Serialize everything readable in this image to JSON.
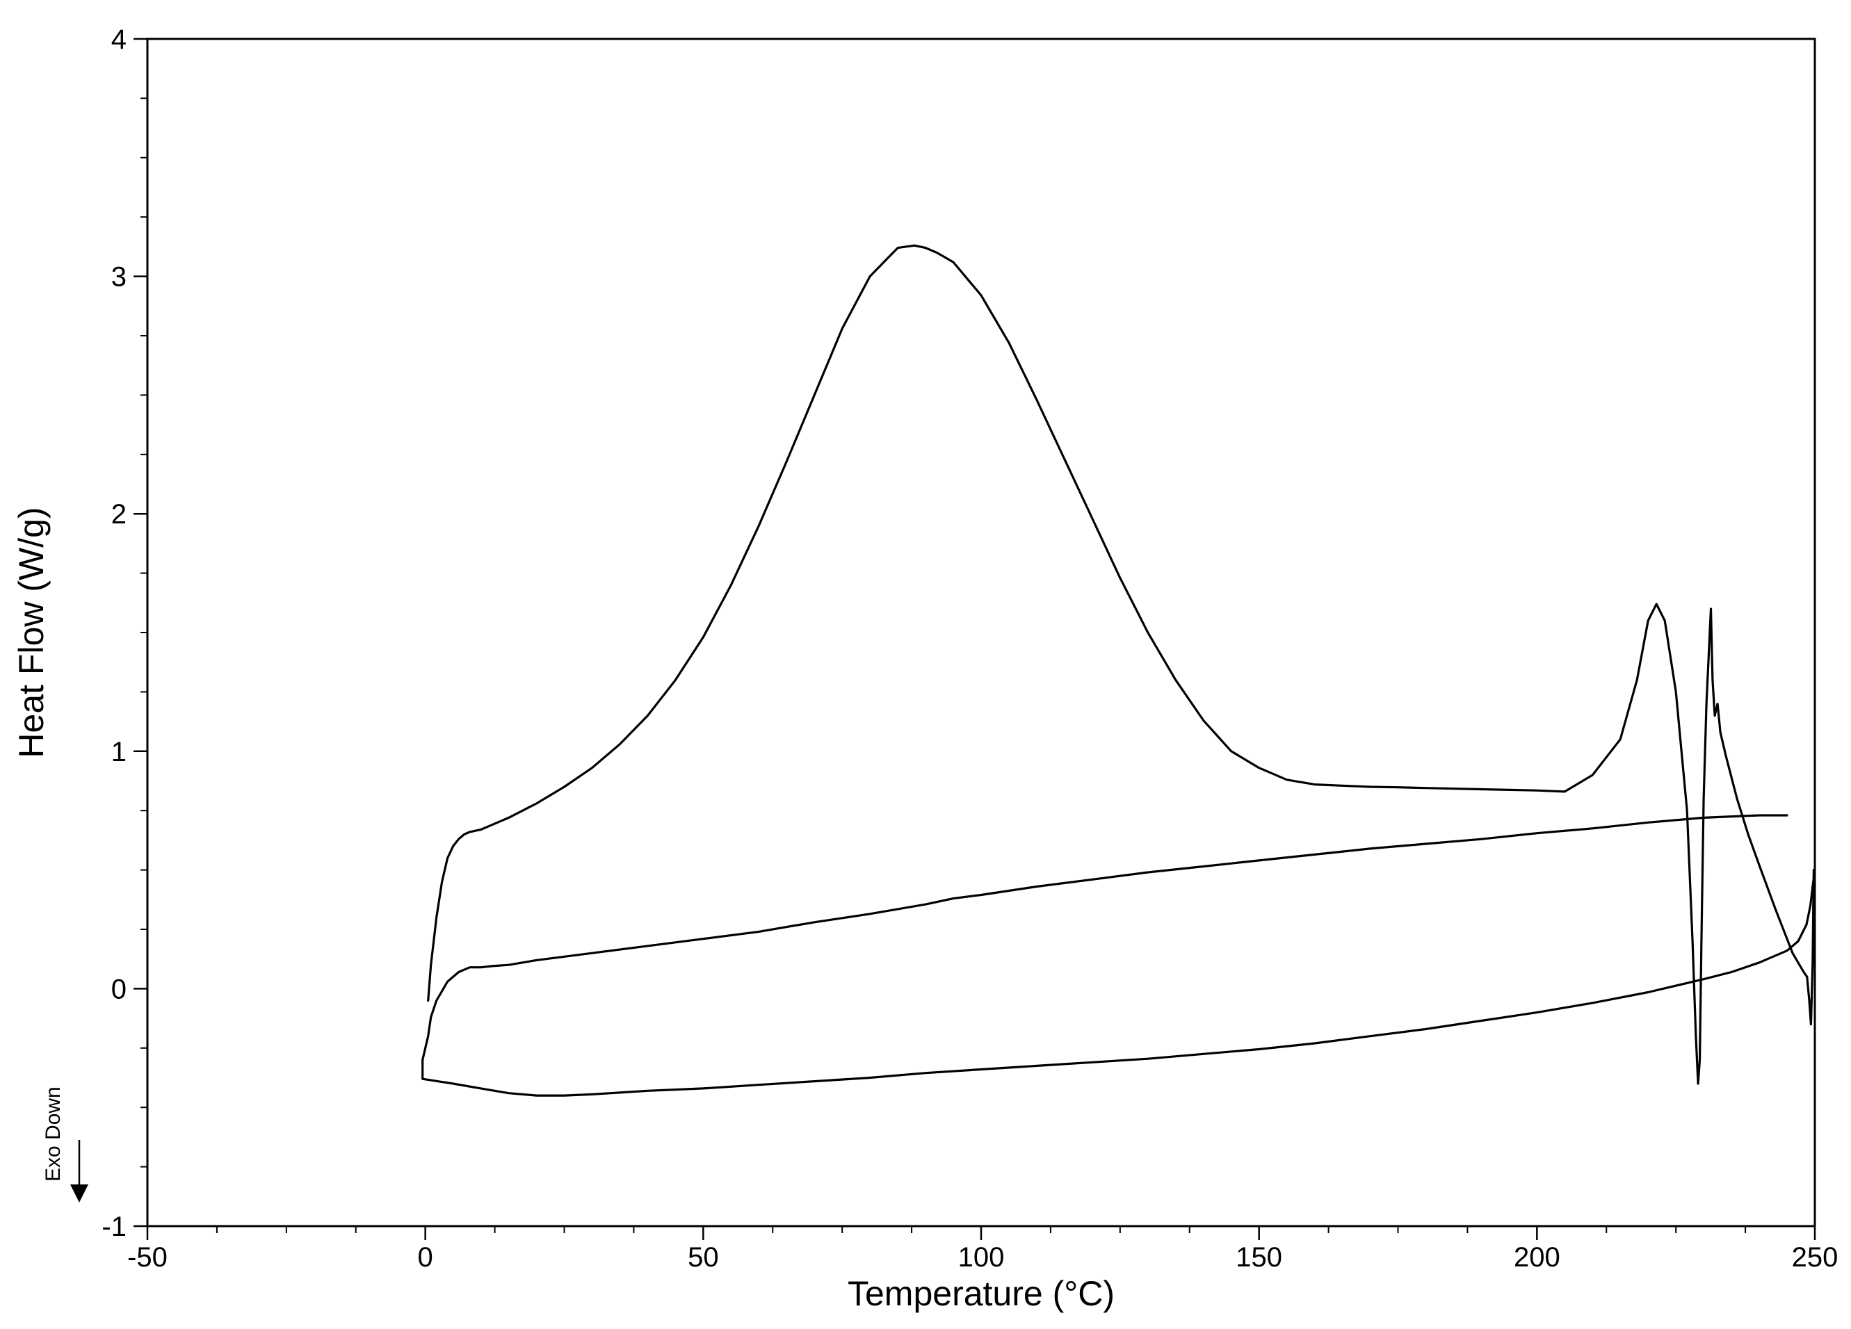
{
  "chart_data": {
    "type": "line",
    "title": "",
    "xlabel": "Temperature (°C)",
    "ylabel": "Heat Flow (W/g)",
    "xlim": [
      -50,
      250
    ],
    "ylim": [
      -1,
      4
    ],
    "x_ticks": [
      -50,
      0,
      50,
      100,
      150,
      200,
      250
    ],
    "y_ticks": [
      -1,
      0,
      1,
      2,
      3,
      4
    ],
    "x_tick_labels": [
      "-50",
      "0",
      "50",
      "100",
      "150",
      "200",
      "250"
    ],
    "y_tick_labels": [
      "-1",
      "0",
      "1",
      "2",
      "3",
      "4"
    ],
    "grid": false,
    "annotation": {
      "text": "Exo Down",
      "arrow": "down"
    },
    "series": [
      {
        "x": [
          0.5,
          1,
          2,
          3,
          4,
          5,
          6,
          7,
          8,
          9,
          10,
          12,
          15,
          20,
          25,
          30,
          35,
          40,
          45,
          50,
          55,
          60,
          65,
          70,
          75,
          80,
          85,
          88,
          90,
          92,
          95,
          100,
          105,
          110,
          115,
          120,
          125,
          130,
          135,
          140,
          145,
          150,
          155,
          160,
          165,
          170,
          175,
          180,
          190,
          200,
          205,
          210,
          215,
          218,
          220,
          221.5,
          223,
          225,
          227,
          228,
          228.6,
          229,
          229.3,
          229.6,
          230,
          230.5,
          231,
          231.3,
          231.6,
          232,
          232.5,
          233,
          234,
          236,
          238,
          240,
          243,
          246,
          248,
          248.6,
          249,
          249.3,
          249.6,
          249.8
        ],
        "y": [
          -0.05,
          0.1,
          0.3,
          0.45,
          0.55,
          0.6,
          0.63,
          0.65,
          0.66,
          0.665,
          0.67,
          0.69,
          0.72,
          0.78,
          0.85,
          0.93,
          1.03,
          1.15,
          1.3,
          1.48,
          1.7,
          1.95,
          2.22,
          2.5,
          2.78,
          3.0,
          3.12,
          3.13,
          3.12,
          3.1,
          3.06,
          2.92,
          2.72,
          2.48,
          2.23,
          1.98,
          1.73,
          1.5,
          1.3,
          1.13,
          1.0,
          0.93,
          0.88,
          0.86,
          0.855,
          0.85,
          0.848,
          0.845,
          0.84,
          0.835,
          0.83,
          0.9,
          1.05,
          1.3,
          1.55,
          1.62,
          1.55,
          1.25,
          0.75,
          0.2,
          -0.2,
          -0.4,
          -0.3,
          0.2,
          0.8,
          1.2,
          1.45,
          1.6,
          1.3,
          1.15,
          1.2,
          1.08,
          0.98,
          0.8,
          0.65,
          0.52,
          0.33,
          0.15,
          0.07,
          0.05,
          -0.05,
          -0.15,
          0.1,
          0.5
        ]
      },
      {
        "x": [
          245,
          240,
          230,
          220,
          210,
          200,
          190,
          180,
          170,
          160,
          150,
          140,
          130,
          120,
          110,
          100,
          95,
          90,
          80,
          70,
          60,
          50,
          40,
          30,
          20,
          15,
          12,
          10,
          8,
          6,
          4,
          2,
          1,
          0.5,
          0,
          -0.3,
          -0.5
        ],
        "y": [
          0.73,
          0.73,
          0.72,
          0.7,
          0.675,
          0.655,
          0.63,
          0.61,
          0.59,
          0.565,
          0.54,
          0.515,
          0.49,
          0.46,
          0.43,
          0.395,
          0.38,
          0.355,
          0.315,
          0.28,
          0.24,
          0.21,
          0.18,
          0.15,
          0.12,
          0.1,
          0.095,
          0.09,
          0.09,
          0.07,
          0.03,
          -0.05,
          -0.12,
          -0.2,
          -0.25,
          -0.28,
          -0.3
        ]
      },
      {
        "x": [
          -0.5,
          -0.5,
          5,
          10,
          15,
          20,
          25,
          30,
          40,
          50,
          60,
          70,
          80,
          90,
          100,
          110,
          120,
          130,
          140,
          150,
          160,
          170,
          180,
          190,
          200,
          210,
          220,
          230,
          235,
          240,
          245,
          247,
          248.5,
          249.2,
          249.6,
          250
        ],
        "y": [
          -0.3,
          -0.38,
          -0.4,
          -0.42,
          -0.44,
          -0.45,
          -0.45,
          -0.445,
          -0.43,
          -0.42,
          -0.405,
          -0.39,
          -0.375,
          -0.355,
          -0.34,
          -0.325,
          -0.31,
          -0.295,
          -0.275,
          -0.255,
          -0.23,
          -0.2,
          -0.17,
          -0.135,
          -0.1,
          -0.06,
          -0.015,
          0.04,
          0.07,
          0.11,
          0.16,
          0.2,
          0.27,
          0.35,
          0.43,
          0.5
        ]
      }
    ]
  }
}
